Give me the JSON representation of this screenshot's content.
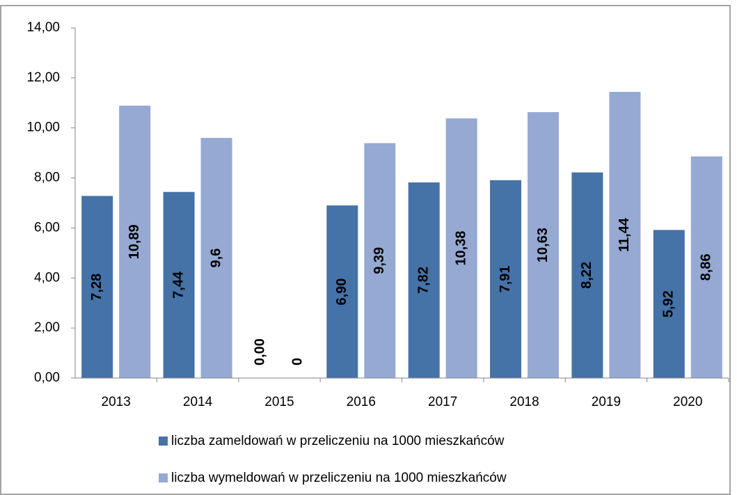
{
  "chart_data": {
    "type": "bar",
    "categories": [
      "2013",
      "2014",
      "2015",
      "2016",
      "2017",
      "2018",
      "2019",
      "2020"
    ],
    "series": [
      {
        "name": "liczba zameldowań w przeliczeniu na 1000 mieszkańców",
        "color": "#4572a7",
        "values": [
          7.28,
          7.44,
          0,
          6.9,
          7.82,
          7.91,
          8.22,
          5.92
        ],
        "value_labels": [
          "7,28",
          "7,44",
          "0,00",
          "6,90",
          "7,82",
          "7,91",
          "8,22",
          "5,92"
        ]
      },
      {
        "name": "liczba wymeldowań w przeliczeniu na 1000 mieszkańców",
        "color": "#95a9d3",
        "values": [
          10.89,
          9.6,
          0,
          9.39,
          10.38,
          10.63,
          11.44,
          8.86
        ],
        "value_labels": [
          "10,89",
          "9,6",
          "0",
          "9,39",
          "10,38",
          "10,63",
          "11,44",
          "8,86"
        ]
      }
    ],
    "ylim": [
      0,
      14
    ],
    "yticks": [
      {
        "value": 0,
        "label": "0,00"
      },
      {
        "value": 2,
        "label": "2,00"
      },
      {
        "value": 4,
        "label": "4,00"
      },
      {
        "value": 6,
        "label": "6,00"
      },
      {
        "value": 8,
        "label": "8,00"
      },
      {
        "value": 10,
        "label": "10,00"
      },
      {
        "value": 12,
        "label": "12,00"
      },
      {
        "value": 14,
        "label": "14,00"
      }
    ],
    "legend": "bottom"
  }
}
